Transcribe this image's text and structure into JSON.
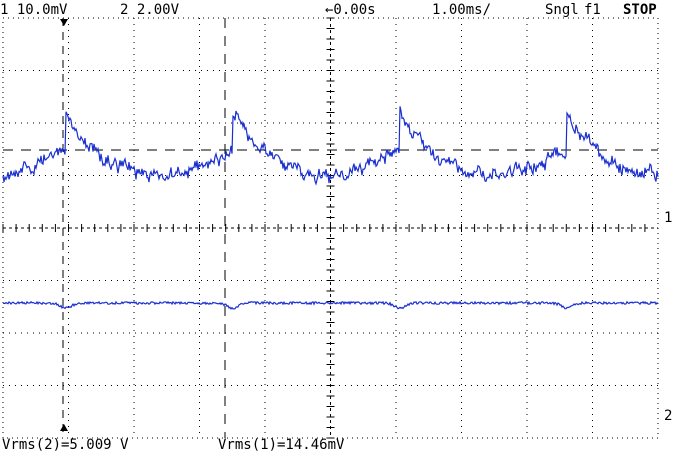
{
  "status_bar": {
    "ch1": "1 10.0mV",
    "ch2": "2 2.00V",
    "delay": "←0.00s",
    "timebase": "1.00ms/",
    "mode": "Sngl",
    "trigger": "f1",
    "state": "STOP"
  },
  "markers": {
    "ch1": "1",
    "ch2": "2"
  },
  "measurements": {
    "ch2": "Vrms(2)=5.009 V",
    "ch1": "Vrms(1)=14.46mV"
  }
}
